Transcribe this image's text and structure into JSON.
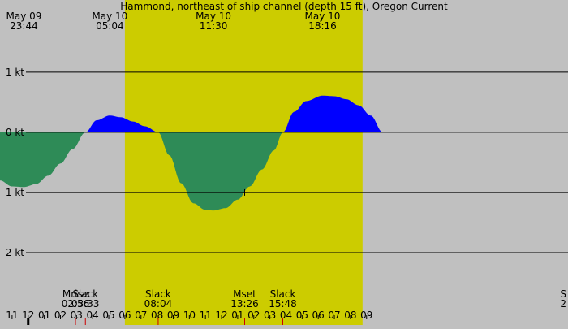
{
  "title": "Hammond, northeast of ship channel (depth 15 ft), Oregon Current",
  "colors": {
    "night": "#c0c0c0",
    "day": "#cccc00",
    "flood": "#0000ff",
    "ebb": "#2e8b57",
    "marker_red": "#cc0000"
  },
  "chart_data": {
    "type": "area",
    "title": "Hammond, northeast of ship channel (depth 15 ft), Oregon Current",
    "xlabel": "",
    "ylabel": "",
    "xlim": [
      "May 09 22:15",
      "May 11 09:30"
    ],
    "ylim": [
      -3.0,
      2.2
    ],
    "unit": "kt",
    "grid": "horizontal",
    "y_ticks": [
      {
        "value": 1,
        "label": "1 kt"
      },
      {
        "value": 0,
        "label": "0 kt"
      },
      {
        "value": -1,
        "label": "-1 kt"
      },
      {
        "value": -2,
        "label": "-2 kt"
      }
    ],
    "top_labels": [
      {
        "date": "May 09",
        "time": "23:44"
      },
      {
        "date": "May 10",
        "time": "05:04"
      },
      {
        "date": "May 10",
        "time": "11:30"
      },
      {
        "date": "May 10",
        "time": "18:16"
      }
    ],
    "bottom_events": [
      {
        "name": "Mrise",
        "time": "02:56"
      },
      {
        "name": "Slack",
        "time": "03:33"
      },
      {
        "name": "Slack",
        "time": "08:04"
      },
      {
        "name": "Mset",
        "time": "13:26"
      },
      {
        "name": "Slack",
        "time": "15:48"
      },
      {
        "name": "S",
        "time": "2"
      }
    ],
    "hour_labels": [
      "11",
      "12",
      "01",
      "02",
      "03",
      "04",
      "05",
      "06",
      "07",
      "08",
      "09",
      "10",
      "11",
      "12",
      "01",
      "02",
      "03",
      "04",
      "05",
      "06",
      "07",
      "08",
      "09"
    ],
    "daylight": {
      "sunrise": "May 10 06:00",
      "sunset": "May 10 20:45"
    },
    "current_marker": {
      "time": "May 10 13:26",
      "value": -1.0
    },
    "series": [
      {
        "x": [
          "May 09 22:15",
          "May 09 23:00",
          "May 09 23:44",
          "May 10 00:30",
          "May 10 01:15",
          "May 10 02:00",
          "May 10 02:45",
          "May 10 03:33",
          "May 10 04:15",
          "May 10 05:04",
          "May 10 05:45",
          "May 10 06:30",
          "May 10 07:15",
          "May 10 08:04",
          "May 10 08:45",
          "May 10 09:30",
          "May 10 10:15",
          "May 10 11:00",
          "May 10 11:30",
          "May 10 12:15",
          "May 10 13:00",
          "May 10 13:45",
          "May 10 14:30",
          "May 10 15:15",
          "May 10 15:48",
          "May 10 16:30",
          "May 10 17:15",
          "May 10 18:16",
          "May 10 19:00",
          "May 10 19:45",
          "May 10 20:30",
          "May 10 21:15",
          "May 10 22:00",
          "May 11 09:30"
        ],
        "values": [
          -0.8,
          -0.9,
          -0.91,
          -0.86,
          -0.72,
          -0.52,
          -0.28,
          0.0,
          0.2,
          0.28,
          0.25,
          0.18,
          0.1,
          0.0,
          -0.38,
          -0.85,
          -1.18,
          -1.29,
          -1.3,
          -1.26,
          -1.12,
          -0.9,
          -0.62,
          -0.3,
          0.0,
          0.34,
          0.52,
          0.61,
          0.6,
          0.55,
          0.45,
          0.28,
          0.0,
          0.0
        ]
      }
    ]
  }
}
